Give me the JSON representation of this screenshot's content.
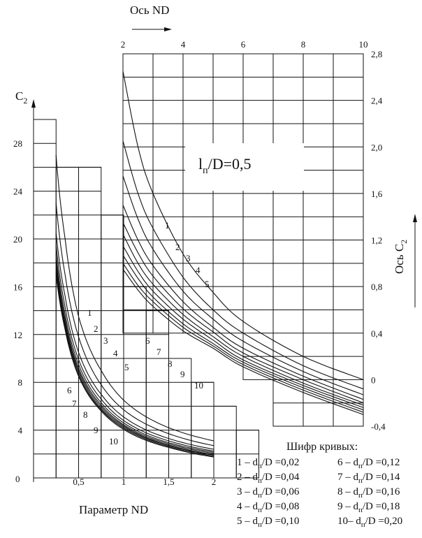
{
  "chart_data": [
    {
      "type": "line",
      "xlabel": "Параметр ND",
      "ylabel": "C",
      "ylabel_sub": "2",
      "x_ticks": [
        "0",
        "0,5",
        "1",
        "1,5",
        "2"
      ],
      "y_ticks": [
        "0",
        "4",
        "8",
        "12",
        "16",
        "20",
        "24",
        "28"
      ],
      "xlim": [
        0,
        2
      ],
      "ylim": [
        0,
        30
      ],
      "grid": true,
      "series": [
        {
          "name": "1",
          "x": [
            0.25,
            0.35,
            0.5,
            0.75,
            1.0,
            1.5,
            2.0
          ],
          "y": [
            27,
            20,
            13.5,
            9,
            6.5,
            4.2,
            3.1
          ]
        },
        {
          "name": "2",
          "x": [
            0.25,
            0.35,
            0.5,
            0.75,
            1.0,
            1.5,
            2.0
          ],
          "y": [
            23,
            17,
            11.8,
            7.8,
            5.7,
            3.7,
            2.7
          ]
        },
        {
          "name": "3",
          "x": [
            0.25,
            0.35,
            0.5,
            0.75,
            1.0,
            1.5,
            2.0
          ],
          "y": [
            20.5,
            15.2,
            10.5,
            7,
            5.1,
            3.3,
            2.4
          ]
        },
        {
          "name": "4",
          "x": [
            0.25,
            0.35,
            0.5,
            0.75,
            1.0,
            1.5,
            2.0
          ],
          "y": [
            19.5,
            14.3,
            9.9,
            6.6,
            4.8,
            3.1,
            2.25
          ]
        },
        {
          "name": "5",
          "x": [
            0.25,
            0.35,
            0.5,
            0.75,
            1.0,
            1.5,
            2.0
          ],
          "y": [
            18.7,
            13.7,
            9.5,
            6.3,
            4.6,
            2.95,
            2.15
          ]
        },
        {
          "name": "6",
          "x": [
            0.25,
            0.35,
            0.5,
            0.75,
            1.0,
            1.5,
            2.0
          ],
          "y": [
            18.2,
            13.3,
            9.2,
            6.1,
            4.45,
            2.85,
            2.05
          ]
        },
        {
          "name": "7",
          "x": [
            0.25,
            0.35,
            0.5,
            0.75,
            1.0,
            1.5,
            2.0
          ],
          "y": [
            17.8,
            13,
            9,
            5.95,
            4.35,
            2.75,
            1.95
          ]
        },
        {
          "name": "8",
          "x": [
            0.25,
            0.35,
            0.5,
            0.75,
            1.0,
            1.5,
            2.0
          ],
          "y": [
            17.5,
            12.8,
            8.8,
            5.8,
            4.25,
            2.7,
            1.9
          ]
        },
        {
          "name": "9",
          "x": [
            0.25,
            0.35,
            0.5,
            0.75,
            1.0,
            1.5,
            2.0
          ],
          "y": [
            17.2,
            12.6,
            8.6,
            5.7,
            4.15,
            2.62,
            1.82
          ]
        },
        {
          "name": "10",
          "x": [
            0.25,
            0.35,
            0.5,
            0.75,
            1.0,
            1.5,
            2.0
          ],
          "y": [
            17,
            12.4,
            8.5,
            5.6,
            4.05,
            2.55,
            1.75
          ]
        }
      ]
    },
    {
      "type": "line",
      "title": "Ось ND",
      "ylabel": "Ось C",
      "ylabel_sub": "2",
      "x_ticks": [
        "2",
        "4",
        "6",
        "8",
        "10"
      ],
      "y_ticks": [
        "-0,4",
        "0",
        "0,4",
        "0,8",
        "1,2",
        "1,6",
        "2,0",
        "2,4",
        "2,8"
      ],
      "xlim": [
        2,
        10
      ],
      "ylim": [
        -0.4,
        2.8
      ],
      "grid": true,
      "annotation_main": "l",
      "annotation_sub": "п",
      "annotation_rest": "/D=0,5",
      "series": [
        {
          "name": "1",
          "x": [
            2,
            2.5,
            3,
            4,
            5,
            6,
            8,
            10
          ],
          "y": [
            2.65,
            2.0,
            1.6,
            1.08,
            0.75,
            0.5,
            0.2,
            0.0
          ]
        },
        {
          "name": "2",
          "x": [
            2,
            2.5,
            3,
            4,
            5,
            6,
            8,
            10
          ],
          "y": [
            2.05,
            1.6,
            1.3,
            0.88,
            0.6,
            0.4,
            0.12,
            -0.08
          ]
        },
        {
          "name": "3",
          "x": [
            2,
            2.5,
            3,
            4,
            5,
            6,
            8,
            10
          ],
          "y": [
            1.75,
            1.38,
            1.12,
            0.76,
            0.52,
            0.33,
            0.07,
            -0.13
          ]
        },
        {
          "name": "4",
          "x": [
            2,
            2.5,
            3,
            4,
            5,
            6,
            8,
            10
          ],
          "y": [
            1.5,
            1.2,
            0.98,
            0.67,
            0.45,
            0.27,
            0.03,
            -0.17
          ]
        },
        {
          "name": "5",
          "x": [
            2,
            2.5,
            3,
            4,
            5,
            6,
            8,
            10
          ],
          "y": [
            1.35,
            1.09,
            0.89,
            0.61,
            0.41,
            0.23,
            0.0,
            -0.2
          ]
        },
        {
          "name": "6",
          "x": [
            2,
            2.5,
            3,
            4,
            5,
            6,
            8,
            10
          ],
          "y": [
            1.25,
            1.0,
            0.82,
            0.56,
            0.37,
            0.2,
            -0.03,
            -0.22
          ]
        },
        {
          "name": "7",
          "x": [
            2,
            2.5,
            3,
            4,
            5,
            6,
            8,
            10
          ],
          "y": [
            1.15,
            0.93,
            0.76,
            0.52,
            0.34,
            0.17,
            -0.05,
            -0.24
          ]
        },
        {
          "name": "8",
          "x": [
            2,
            2.5,
            3,
            4,
            5,
            6,
            8,
            10
          ],
          "y": [
            1.07,
            0.87,
            0.71,
            0.48,
            0.31,
            0.15,
            -0.07,
            -0.26
          ]
        },
        {
          "name": "9",
          "x": [
            2,
            2.5,
            3,
            4,
            5,
            6,
            8,
            10
          ],
          "y": [
            1.0,
            0.81,
            0.67,
            0.45,
            0.29,
            0.13,
            -0.09,
            -0.28
          ]
        },
        {
          "name": "10",
          "x": [
            2,
            2.5,
            3,
            4,
            5,
            6,
            8,
            10
          ],
          "y": [
            0.95,
            0.77,
            0.63,
            0.42,
            0.27,
            0.11,
            -0.11,
            -0.3
          ]
        }
      ]
    }
  ],
  "legend": {
    "title": "Шифр кривых:",
    "entries": [
      {
        "num": "1 – ",
        "main": "d",
        "sub": "п",
        "rest": "/D =0,02"
      },
      {
        "num": "2 – ",
        "main": "d",
        "sub": "п",
        "rest": "/D =0,04"
      },
      {
        "num": "3 – ",
        "main": "d",
        "sub": "п",
        "rest": "/D =0,06"
      },
      {
        "num": "4 – ",
        "main": "d",
        "sub": "п",
        "rest": "/D =0,08"
      },
      {
        "num": "5 – ",
        "main": "d",
        "sub": "п",
        "rest": "/D =0,10"
      },
      {
        "num": "6 – ",
        "main": "d",
        "sub": "п",
        "rest": "/D =0,12"
      },
      {
        "num": "7 – ",
        "main": "d",
        "sub": "п",
        "rest": "/D =0,14"
      },
      {
        "num": "8 – ",
        "main": "d",
        "sub": "п",
        "rest": "/D =0,16"
      },
      {
        "num": "9 – ",
        "main": "d",
        "sub": "п",
        "rest": "/D =0,18"
      },
      {
        "num": "10– ",
        "main": "d",
        "sub": "п",
        "rest": "/D =0,20"
      }
    ]
  }
}
